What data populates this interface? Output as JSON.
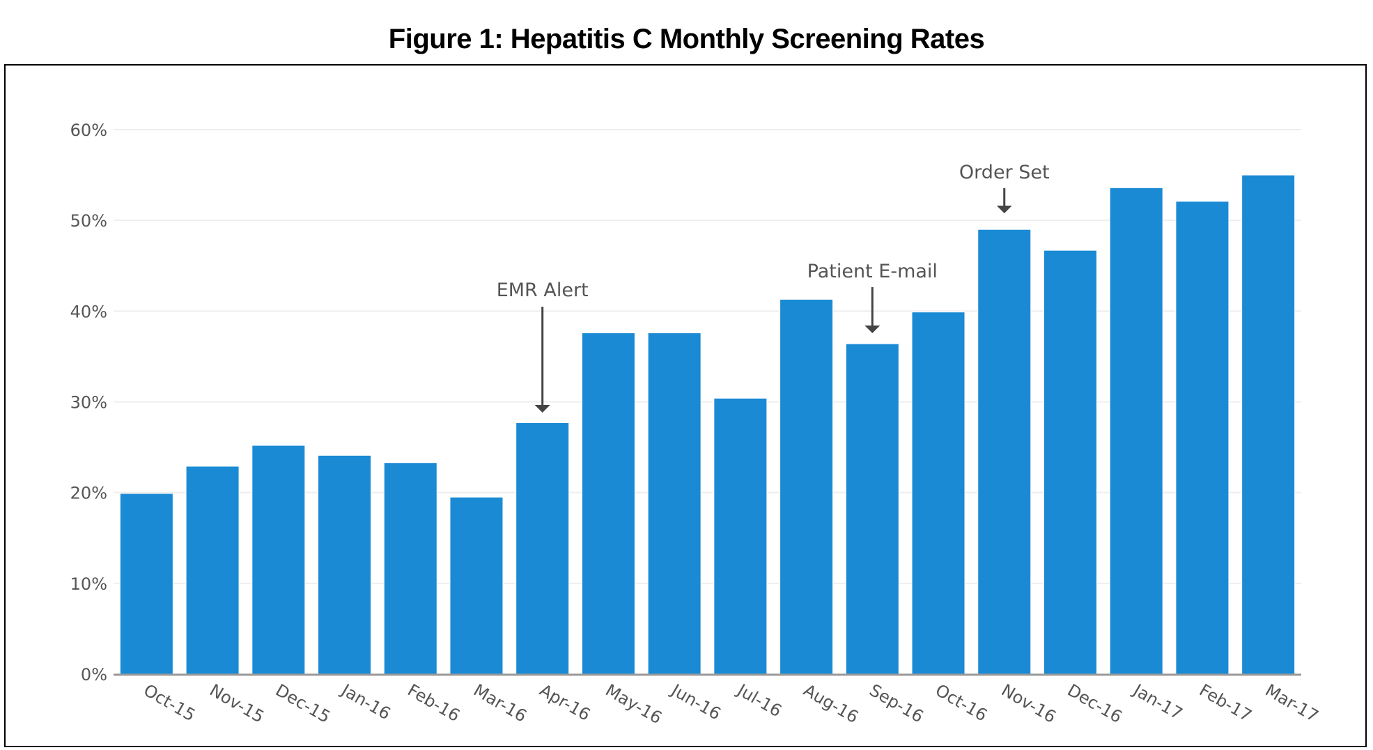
{
  "title": "Figure 1: Hepatitis C Monthly Screening Rates",
  "colors": {
    "bar": "#1a8ad4",
    "grid": "#eeeeee",
    "axis": "#999999",
    "arrow": "#444444"
  },
  "chart_data": {
    "type": "bar",
    "title": "Figure 1: Hepatitis C Monthly Screening Rates",
    "xlabel": "",
    "ylabel": "",
    "ylim": [
      0,
      60
    ],
    "yticks": [
      "0%",
      "10%",
      "20%",
      "30%",
      "40%",
      "50%",
      "60%"
    ],
    "grid": true,
    "categories": [
      "Oct-15",
      "Nov-15",
      "Dec-15",
      "Jan-16",
      "Feb-16",
      "Mar-16",
      "Apr-16",
      "May-16",
      "Jun-16",
      "Jul-16",
      "Aug-16",
      "Sep-16",
      "Oct-16",
      "Nov-16",
      "Dec-16",
      "Jan-17",
      "Feb-17",
      "Mar-17"
    ],
    "values": [
      19.9,
      22.9,
      25.2,
      24.1,
      23.3,
      19.5,
      27.7,
      37.6,
      37.6,
      30.4,
      41.3,
      36.4,
      39.9,
      49.0,
      46.7,
      53.6,
      52.1,
      55.0
    ],
    "annotations": [
      {
        "text": "EMR Alert",
        "category": "Apr-16"
      },
      {
        "text": "Patient E-mail",
        "category": "Sep-16"
      },
      {
        "text": "Order Set",
        "category": "Nov-16"
      }
    ]
  }
}
